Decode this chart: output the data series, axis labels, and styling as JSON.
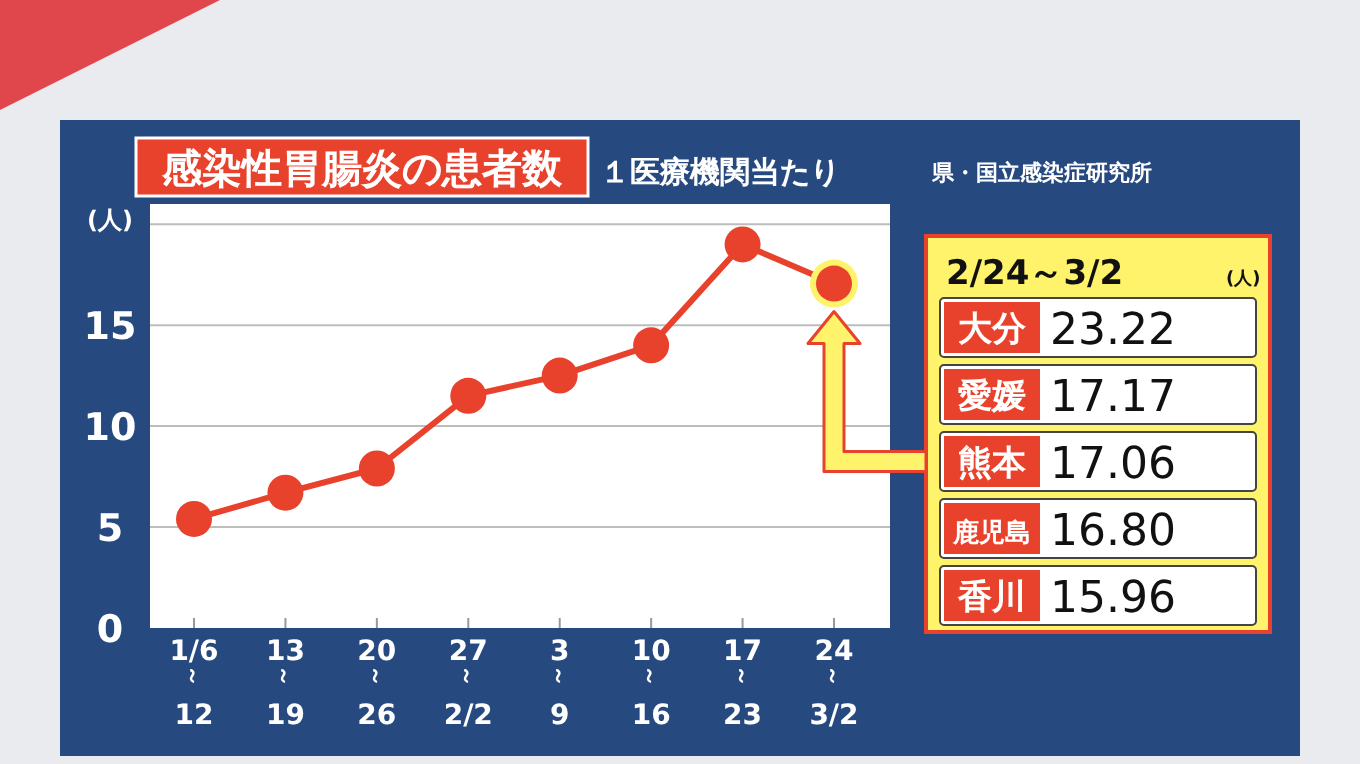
{
  "chart_data": [
    {
      "type": "line",
      "title": "感染性胃腸炎の患者数",
      "subtitle": "１医療機関当たり",
      "ylabel": "(人)",
      "annotations": [
        "県・国立感染症研究所"
      ],
      "categories": [
        "1/6\n～\n12",
        "13\n～\n19",
        "20\n～\n26",
        "27\n～\n2/2",
        "3\n～\n9",
        "10\n～\n16",
        "17\n～\n23",
        "24\n～\n3/2"
      ],
      "series": [
        {
          "color": "#e8412c",
          "values": [
            5.4,
            6.7,
            7.9,
            11.5,
            12.5,
            14,
            19,
            17.06
          ]
        }
      ],
      "ylim": [
        0,
        21
      ],
      "yticks": [
        0,
        5,
        10,
        15,
        {
          "value": 20,
          "label": null
        }
      ],
      "grid": "y",
      "marker": "circle",
      "line_style": "solid"
    },
    {
      "type": "other",
      "title": "2/24～3/2",
      "subtitle": "(人)",
      "categories": [
        "大分",
        "愛媛",
        "熊本",
        "鹿児島",
        "香川"
      ],
      "values": [
        23.22,
        17.17,
        17.06,
        16.8,
        15.96
      ],
      "value_labels": [
        "23.22",
        "17.17",
        "17.06",
        "16.80",
        "15.96"
      ]
    }
  ]
}
